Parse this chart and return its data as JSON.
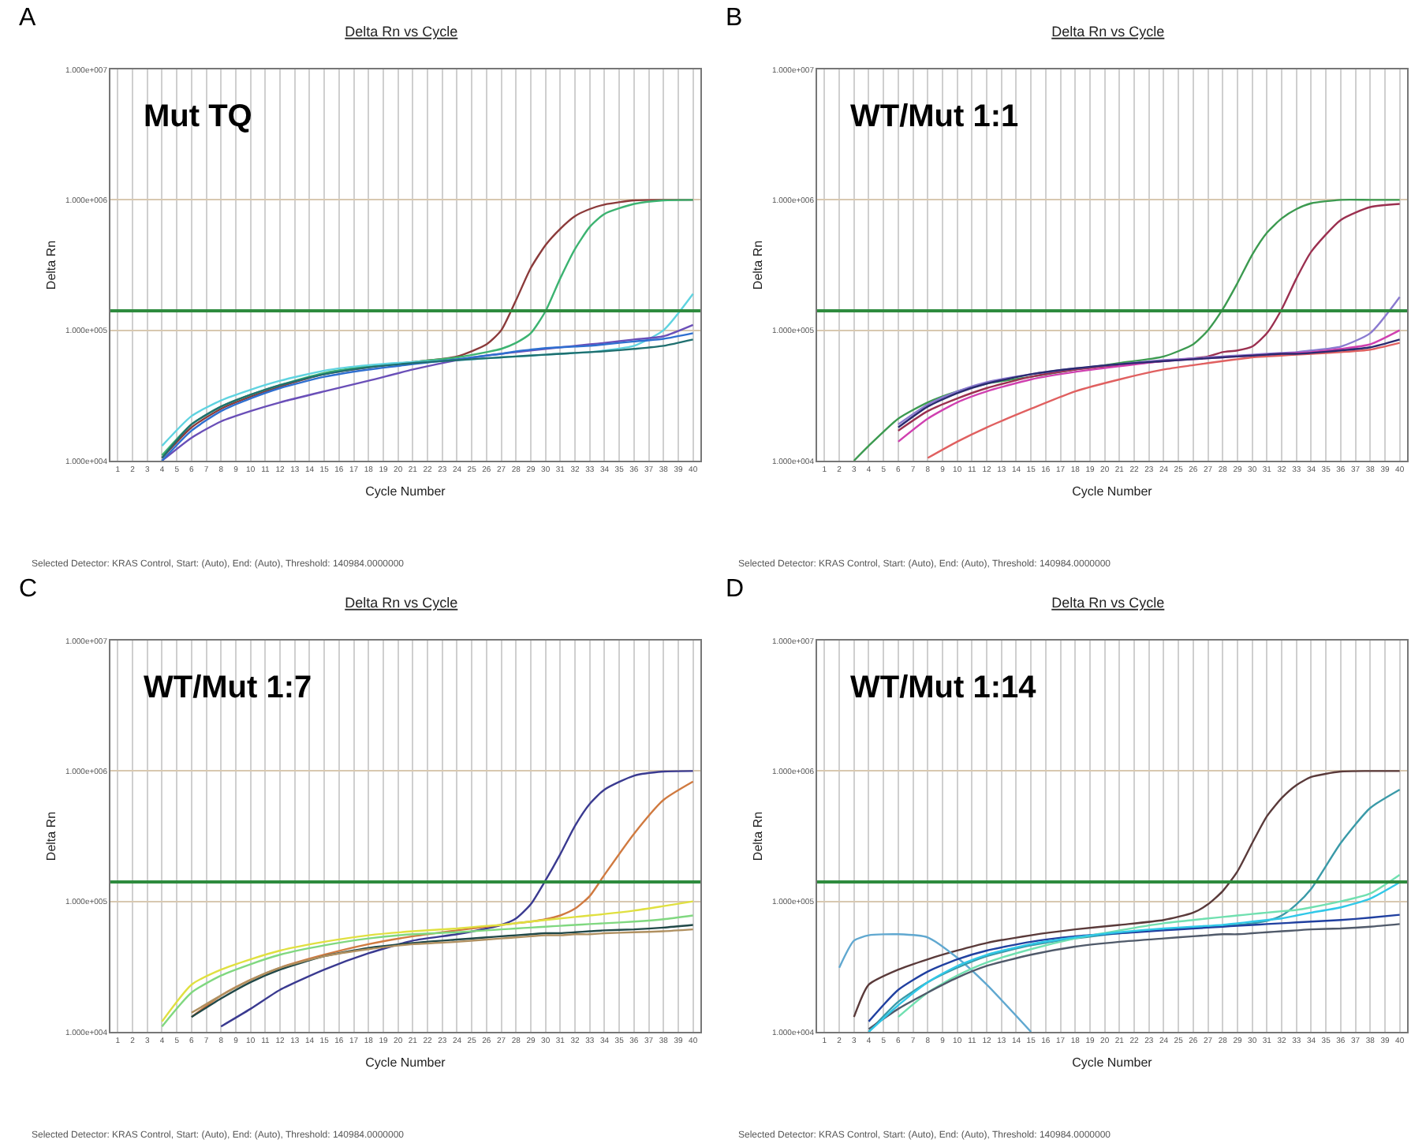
{
  "chart_data": [
    {
      "type": "line",
      "title": "Delta Rn vs Cycle",
      "xlabel": "Cycle Number",
      "ylabel": "Delta Rn",
      "log": "y",
      "grid": true,
      "annotations": [
        "A",
        "Mut TQ",
        "Selected Detector: KRAS Control, Start: (Auto), End: (Auto), Threshold: 140984.0000000"
      ],
      "xlim": [
        0.5,
        40.5
      ],
      "xticks": [
        1,
        2,
        3,
        4,
        5,
        6,
        7,
        8,
        9,
        10,
        11,
        12,
        13,
        14,
        15,
        16,
        17,
        18,
        19,
        20,
        21,
        22,
        23,
        24,
        25,
        26,
        27,
        28,
        29,
        30,
        31,
        32,
        33,
        34,
        35,
        36,
        37,
        38,
        39,
        40
      ],
      "ylim": [
        10000,
        10000000
      ],
      "yticks": [
        {
          "value": 10000,
          "label": "1.000e+004"
        },
        {
          "value": 100000,
          "label": "1.000e+005"
        },
        {
          "value": 1000000,
          "label": "1.000e+006"
        },
        {
          "value": 10000000,
          "label": "1.000e+007"
        }
      ],
      "ref_lines": [
        {
          "axis": "y",
          "value": 140984,
          "color": "#2e8b3e"
        }
      ],
      "x": [
        4,
        6,
        8,
        10,
        12,
        15,
        18,
        21,
        24,
        26,
        27,
        28,
        29,
        30,
        31,
        32,
        33,
        34,
        36,
        38,
        40
      ],
      "series": [
        {
          "color": "#8b3a3a",
          "values": [
            10500,
            18000,
            25000,
            31000,
            37000,
            46000,
            52000,
            57000,
            63000,
            78000,
            100000,
            170000,
            300000,
            450000,
            600000,
            750000,
            850000,
            920000,
            990000,
            1000000,
            1000000
          ]
        },
        {
          "color": "#3cb371",
          "values": [
            11000,
            19000,
            26000,
            32000,
            38000,
            47000,
            53000,
            57000,
            62000,
            68000,
            72000,
            80000,
            95000,
            140000,
            250000,
            420000,
            620000,
            780000,
            930000,
            990000,
            1000000
          ]
        },
        {
          "color": "#5fd3e0",
          "values": [
            13000,
            22000,
            29000,
            35000,
            41000,
            49000,
            54000,
            57000,
            59000,
            61000,
            62000,
            63000,
            64000,
            65000,
            66000,
            67000,
            68000,
            70000,
            76000,
            100000,
            190000
          ]
        },
        {
          "color": "#6a4fb8",
          "values": [
            10000,
            15000,
            20000,
            24000,
            28000,
            34000,
            41000,
            50000,
            59000,
            64000,
            66000,
            68000,
            70000,
            72000,
            74000,
            76000,
            78000,
            80000,
            85000,
            90000,
            110000
          ]
        },
        {
          "color": "#2f6fd0",
          "values": [
            10000,
            17000,
            24000,
            30000,
            36000,
            44000,
            50000,
            55000,
            60000,
            64000,
            66000,
            69000,
            71000,
            73000,
            74000,
            75000,
            76000,
            78000,
            82000,
            86000,
            95000
          ]
        },
        {
          "color": "#1f6f6f",
          "values": [
            10500,
            19000,
            26000,
            32000,
            38000,
            46000,
            52000,
            56000,
            59000,
            61000,
            62000,
            63000,
            64000,
            65000,
            66000,
            67000,
            68000,
            69000,
            72000,
            76000,
            85000
          ]
        }
      ]
    },
    {
      "type": "line",
      "title": "Delta Rn vs Cycle",
      "xlabel": "Cycle Number",
      "ylabel": "Delta Rn",
      "log": "y",
      "grid": true,
      "annotations": [
        "B",
        "WT/Mut 1:1",
        "Selected Detector: KRAS Control, Start: (Auto), End: (Auto), Threshold: 140984.0000000"
      ],
      "xlim": [
        0.5,
        40.5
      ],
      "xticks": [
        1,
        2,
        3,
        4,
        5,
        6,
        7,
        8,
        9,
        10,
        11,
        12,
        13,
        14,
        15,
        16,
        17,
        18,
        19,
        20,
        21,
        22,
        23,
        24,
        25,
        26,
        27,
        28,
        29,
        30,
        31,
        32,
        33,
        34,
        35,
        36,
        37,
        38,
        39,
        40
      ],
      "ylim": [
        10000,
        10000000
      ],
      "yticks": [
        {
          "value": 10000,
          "label": "1.000e+004"
        },
        {
          "value": 100000,
          "label": "1.000e+005"
        },
        {
          "value": 1000000,
          "label": "1.000e+006"
        },
        {
          "value": 10000000,
          "label": "1.000e+007"
        }
      ],
      "ref_lines": [
        {
          "axis": "y",
          "value": 140984,
          "color": "#2e8b3e"
        }
      ],
      "x": [
        3,
        4,
        6,
        8,
        10,
        12,
        15,
        18,
        21,
        24,
        26,
        27,
        28,
        29,
        30,
        31,
        32,
        33,
        34,
        36,
        38,
        40
      ],
      "series": [
        {
          "color": "#3c9a50",
          "values": [
            10000,
            13000,
            21000,
            28000,
            34000,
            39000,
            44000,
            50000,
            56000,
            63000,
            78000,
            100000,
            145000,
            230000,
            380000,
            560000,
            720000,
            850000,
            940000,
            1000000,
            1000000,
            1000000
          ]
        },
        {
          "color": "#9b3050",
          "values": [
            null,
            null,
            17000,
            24000,
            30000,
            36000,
            44000,
            50000,
            54000,
            58000,
            61000,
            63000,
            68000,
            70000,
            75000,
            95000,
            145000,
            250000,
            400000,
            700000,
            880000,
            930000
          ]
        },
        {
          "color": "#e06060",
          "values": [
            null,
            null,
            null,
            10500,
            14000,
            18000,
            25000,
            34000,
            42000,
            50000,
            54000,
            56000,
            58000,
            60000,
            62000,
            63000,
            64000,
            65000,
            66000,
            68000,
            71000,
            80000
          ]
        },
        {
          "color": "#8a7ad0",
          "values": [
            null,
            null,
            19000,
            27000,
            34000,
            40000,
            46000,
            51000,
            55000,
            59000,
            61000,
            62000,
            63000,
            64000,
            65000,
            66000,
            67000,
            68000,
            70000,
            75000,
            95000,
            180000
          ]
        },
        {
          "color": "#d040b0",
          "values": [
            null,
            null,
            14000,
            21000,
            28000,
            34000,
            42000,
            48000,
            53000,
            58000,
            60000,
            61000,
            62000,
            63000,
            64000,
            65000,
            66000,
            67000,
            68000,
            72000,
            78000,
            100000
          ]
        },
        {
          "color": "#2a2a70",
          "values": [
            null,
            null,
            18000,
            26000,
            33000,
            39000,
            46000,
            51000,
            55000,
            58000,
            60000,
            61000,
            62000,
            63000,
            64000,
            65000,
            66000,
            66000,
            67000,
            70000,
            74000,
            85000
          ]
        }
      ]
    },
    {
      "type": "line",
      "title": "Delta Rn vs Cycle",
      "xlabel": "Cycle Number",
      "ylabel": "Delta Rn",
      "log": "y",
      "grid": true,
      "annotations": [
        "C",
        "WT/Mut 1:7",
        "Selected Detector: KRAS Control, Start: (Auto), End: (Auto), Threshold: 140984.0000000"
      ],
      "xlim": [
        0.5,
        40.5
      ],
      "xticks": [
        1,
        2,
        3,
        4,
        5,
        6,
        7,
        8,
        9,
        10,
        11,
        12,
        13,
        14,
        15,
        16,
        17,
        18,
        19,
        20,
        21,
        22,
        23,
        24,
        25,
        26,
        27,
        28,
        29,
        30,
        31,
        32,
        33,
        34,
        35,
        36,
        37,
        38,
        39,
        40
      ],
      "ylim": [
        10000,
        10000000
      ],
      "yticks": [
        {
          "value": 10000,
          "label": "1.000e+004"
        },
        {
          "value": 100000,
          "label": "1.000e+005"
        },
        {
          "value": 1000000,
          "label": "1.000e+006"
        },
        {
          "value": 10000000,
          "label": "1.000e+007"
        }
      ],
      "ref_lines": [
        {
          "axis": "y",
          "value": 140984,
          "color": "#2e8b3e"
        }
      ],
      "x": [
        4,
        6,
        8,
        10,
        12,
        15,
        18,
        21,
        24,
        26,
        27,
        28,
        29,
        30,
        31,
        32,
        33,
        34,
        36,
        38,
        40
      ],
      "series": [
        {
          "color": "#3a3a90",
          "values": [
            null,
            null,
            11000,
            15000,
            21000,
            30000,
            40000,
            50000,
            56000,
            62000,
            66000,
            74000,
            95000,
            145000,
            230000,
            380000,
            560000,
            720000,
            920000,
            990000,
            1000000
          ]
        },
        {
          "color": "#d07a40",
          "values": [
            null,
            13000,
            19000,
            25000,
            31000,
            39000,
            47000,
            54000,
            60000,
            64000,
            66000,
            68000,
            70000,
            73000,
            78000,
            88000,
            110000,
            160000,
            330000,
            600000,
            830000
          ]
        },
        {
          "color": "#e0e040",
          "values": [
            12000,
            23000,
            30000,
            36000,
            42000,
            49000,
            55000,
            59000,
            62000,
            65000,
            66000,
            68000,
            70000,
            72000,
            74000,
            76000,
            78000,
            80000,
            85000,
            92000,
            100000
          ]
        },
        {
          "color": "#80d880",
          "values": [
            11000,
            20000,
            27000,
            33000,
            39000,
            46000,
            52000,
            56000,
            58000,
            60000,
            61000,
            62000,
            63000,
            64000,
            65000,
            66000,
            67000,
            68000,
            70000,
            73000,
            78000
          ]
        },
        {
          "color": "#204848",
          "values": [
            null,
            13000,
            18000,
            24000,
            30000,
            38000,
            44000,
            48000,
            51000,
            53000,
            54000,
            55000,
            56000,
            57000,
            57000,
            58000,
            59000,
            60000,
            61000,
            63000,
            66000
          ]
        },
        {
          "color": "#b09060",
          "values": [
            null,
            14000,
            19000,
            25000,
            31000,
            38000,
            43000,
            47000,
            49000,
            51000,
            52000,
            53000,
            54000,
            55000,
            55000,
            56000,
            56000,
            57000,
            58000,
            59000,
            61000
          ]
        }
      ]
    },
    {
      "type": "line",
      "title": "Delta Rn vs Cycle",
      "xlabel": "Cycle Number",
      "ylabel": "Delta Rn",
      "log": "y",
      "grid": true,
      "annotations": [
        "D",
        "WT/Mut 1:14",
        "Selected Detector: KRAS Control, Start: (Auto), End: (Auto), Threshold: 140984.0000000"
      ],
      "xlim": [
        0.5,
        40.5
      ],
      "xticks": [
        1,
        2,
        3,
        4,
        5,
        6,
        7,
        8,
        9,
        10,
        11,
        12,
        13,
        14,
        15,
        16,
        17,
        18,
        19,
        20,
        21,
        22,
        23,
        24,
        25,
        26,
        27,
        28,
        29,
        30,
        31,
        32,
        33,
        34,
        35,
        36,
        37,
        38,
        39,
        40
      ],
      "ylim": [
        10000,
        10000000
      ],
      "yticks": [
        {
          "value": 10000,
          "label": "1.000e+004"
        },
        {
          "value": 100000,
          "label": "1.000e+005"
        },
        {
          "value": 1000000,
          "label": "1.000e+006"
        },
        {
          "value": 10000000,
          "label": "1.000e+007"
        }
      ],
      "ref_lines": [
        {
          "axis": "y",
          "value": 140984,
          "color": "#2e8b3e"
        }
      ],
      "x": [
        2,
        3,
        4,
        6,
        8,
        10,
        12,
        15,
        18,
        21,
        24,
        26,
        27,
        28,
        29,
        30,
        31,
        32,
        33,
        34,
        36,
        38,
        40
      ],
      "series": [
        {
          "color": "#5a3a3a",
          "values": [
            null,
            13000,
            23000,
            30000,
            36000,
            42000,
            48000,
            55000,
            61000,
            66000,
            72000,
            82000,
            95000,
            120000,
            170000,
            280000,
            450000,
            620000,
            780000,
            900000,
            990000,
            1000000,
            1000000
          ]
        },
        {
          "color": "#60a8d0",
          "values": [
            31000,
            50000,
            55000,
            56000,
            53000,
            37000,
            23000,
            10000,
            null,
            null,
            null,
            null,
            null,
            null,
            null,
            null,
            null,
            null,
            null,
            null,
            null,
            null,
            null
          ]
        },
        {
          "color": "#3a9aa8",
          "values": [
            null,
            null,
            10000,
            17000,
            24000,
            31000,
            38000,
            46000,
            52000,
            57000,
            61000,
            63000,
            64000,
            65000,
            66000,
            68000,
            71000,
            78000,
            95000,
            125000,
            280000,
            520000,
            720000
          ]
        },
        {
          "color": "#2040a0",
          "values": [
            null,
            null,
            12000,
            21000,
            29000,
            36000,
            42000,
            49000,
            54000,
            57000,
            60000,
            62000,
            63000,
            64000,
            65000,
            66000,
            67000,
            68000,
            69000,
            70000,
            72000,
            75000,
            79000
          ]
        },
        {
          "color": "#70e0b0",
          "values": [
            null,
            null,
            null,
            13000,
            20000,
            27000,
            34000,
            43000,
            52000,
            60000,
            68000,
            72000,
            74000,
            76000,
            78000,
            80000,
            82000,
            84000,
            86000,
            90000,
            100000,
            115000,
            160000
          ]
        },
        {
          "color": "#505a6a",
          "values": [
            null,
            null,
            10500,
            15000,
            20000,
            26000,
            32000,
            39000,
            45000,
            49000,
            52000,
            54000,
            55000,
            56000,
            56000,
            57000,
            58000,
            59000,
            60000,
            61000,
            62000,
            64000,
            67000
          ]
        },
        {
          "color": "#30c8e8",
          "values": [
            null,
            null,
            10000,
            16000,
            24000,
            32000,
            39000,
            47000,
            53000,
            58000,
            62000,
            64000,
            65000,
            66000,
            68000,
            70000,
            72000,
            74000,
            78000,
            82000,
            90000,
            105000,
            140000
          ]
        }
      ]
    }
  ]
}
